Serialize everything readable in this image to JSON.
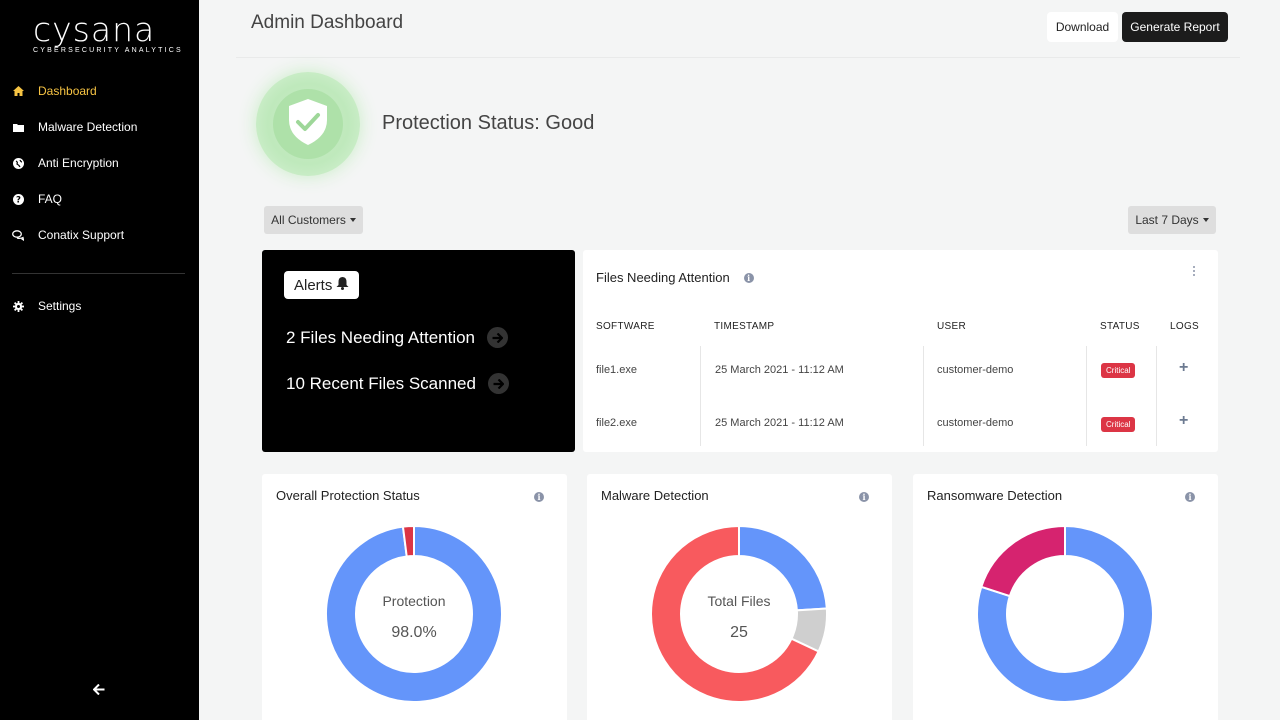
{
  "brand": {
    "wordmark": "cysana",
    "tagline": "CYBERSECURITY ANALYTICS"
  },
  "sidebar": {
    "items": [
      {
        "label": "Dashboard",
        "icon": "home-icon",
        "active": true
      },
      {
        "label": "Malware Detection",
        "icon": "folder-icon"
      },
      {
        "label": "Anti Encryption",
        "icon": "globe-icon"
      },
      {
        "label": "FAQ",
        "icon": "question-circle-icon"
      },
      {
        "label": "Conatix Support",
        "icon": "chat-icon"
      },
      {
        "label": "Settings",
        "icon": "gear-icon"
      }
    ]
  },
  "header": {
    "title": "Admin Dashboard",
    "download_label": "Download",
    "report_label": "Generate Report"
  },
  "protection": {
    "status_text": "Protection Status: Good"
  },
  "filters": {
    "customers": "All Customers",
    "range": "Last 7 Days"
  },
  "alerts": {
    "pill_label": "Alerts",
    "items": [
      {
        "label": "2 Files Needing Attention"
      },
      {
        "label": "10 Recent Files Scanned"
      }
    ]
  },
  "files": {
    "title": "Files Needing Attention",
    "columns": [
      "SOFTWARE",
      "TIMESTAMP",
      "USER",
      "STATUS",
      "LOGS"
    ],
    "rows": [
      {
        "software": "file1.exe",
        "timestamp": "25 March 2021 - 11:12 AM",
        "user": "customer-demo",
        "status": "Critical"
      },
      {
        "software": "file2.exe",
        "timestamp": "25 March 2021 - 11:12 AM",
        "user": "customer-demo",
        "status": "Critical"
      }
    ]
  },
  "colors": {
    "blue": "#6495fa",
    "red": "#f85a5e",
    "gray": "#cfcfcf",
    "magenta": "#d6236f",
    "danger": "#dc3545",
    "accent": "#f6c343"
  },
  "charts": [
    {
      "title": "Overall Protection Status",
      "center_label": "Protection",
      "center_value": "98.0%"
    },
    {
      "title": "Malware Detection",
      "center_label": "Total Files",
      "center_value": "25"
    },
    {
      "title": "Ransomware Detection",
      "center_label": "",
      "center_value": ""
    }
  ],
  "chart_data": [
    {
      "type": "pie",
      "title": "Overall Protection Status",
      "values": [
        98,
        2
      ],
      "colors": [
        "#6495fa",
        "#dc3545"
      ]
    },
    {
      "type": "pie",
      "title": "Malware Detection",
      "values": [
        6,
        2,
        17
      ],
      "colors": [
        "#6495fa",
        "#cfcfcf",
        "#f85a5e"
      ]
    },
    {
      "type": "pie",
      "title": "Ransomware Detection",
      "values": [
        80,
        20
      ],
      "colors": [
        "#6495fa",
        "#d6236f"
      ]
    }
  ]
}
